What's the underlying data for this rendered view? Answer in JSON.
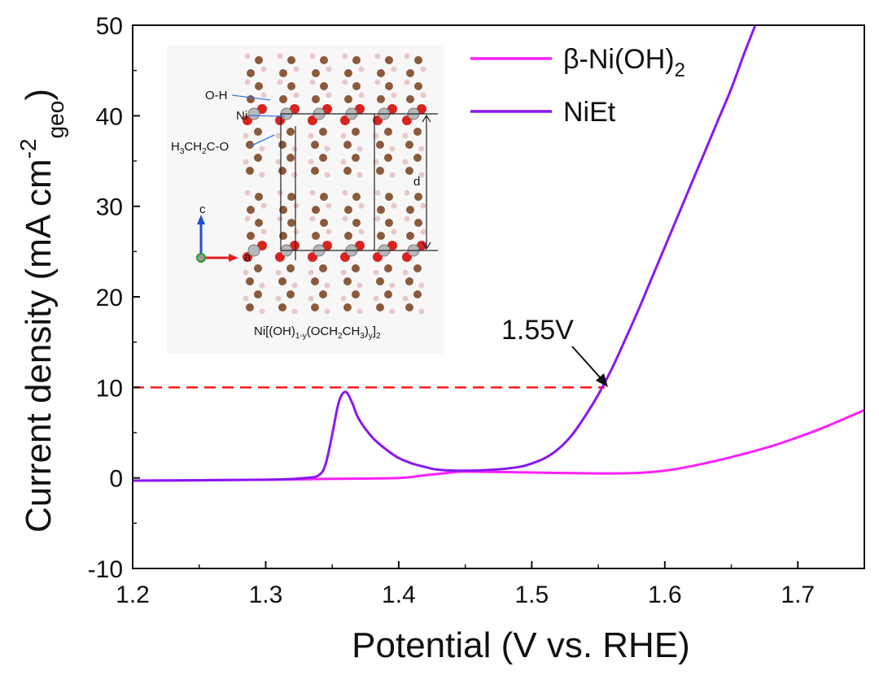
{
  "chart_data": {
    "type": "line",
    "xlabel": "Potential (V vs. RHE)",
    "ylabel_main": "Current density (mA cm",
    "ylabel_sup": "-2",
    "ylabel_sub": "geo",
    "ylabel_close": ")",
    "xlim": [
      1.2,
      1.75
    ],
    "ylim": [
      -10,
      50
    ],
    "x_ticks": [
      1.2,
      1.3,
      1.4,
      1.5,
      1.6,
      1.7
    ],
    "x_tick_labels": [
      "1.2",
      "1.3",
      "1.4",
      "1.5",
      "1.6",
      "1.7"
    ],
    "y_ticks": [
      -10,
      0,
      10,
      20,
      30,
      40,
      50
    ],
    "y_tick_labels": [
      "-10",
      "0",
      "10",
      "20",
      "30",
      "40",
      "50"
    ],
    "series": [
      {
        "name": "β-Ni(OH)2",
        "label_main": "β-Ni(OH)",
        "label_sub": "2",
        "color": "#ff20ff",
        "x": [
          1.2,
          1.3,
          1.35,
          1.4,
          1.42,
          1.44,
          1.45,
          1.5,
          1.55,
          1.58,
          1.6,
          1.62,
          1.65,
          1.68,
          1.7,
          1.72,
          1.75
        ],
        "y": [
          -0.3,
          -0.2,
          -0.1,
          0.0,
          0.3,
          0.6,
          0.7,
          0.6,
          0.5,
          0.55,
          0.8,
          1.3,
          2.3,
          3.5,
          4.5,
          5.6,
          7.5
        ]
      },
      {
        "name": "NiEt",
        "label_main": "NiEt",
        "label_sub": "",
        "color": "#8a17f0",
        "x": [
          1.2,
          1.3,
          1.33,
          1.34,
          1.345,
          1.35,
          1.355,
          1.36,
          1.365,
          1.37,
          1.38,
          1.39,
          1.4,
          1.41,
          1.42,
          1.43,
          1.45,
          1.47,
          1.49,
          1.5,
          1.51,
          1.52,
          1.53,
          1.54,
          1.55,
          1.56,
          1.57,
          1.58,
          1.59,
          1.6,
          1.61,
          1.62,
          1.63,
          1.64,
          1.65,
          1.66,
          1.668
        ],
        "y": [
          -0.3,
          -0.2,
          0.0,
          0.3,
          1.5,
          4.8,
          8.4,
          9.5,
          8.3,
          6.5,
          4.5,
          3.2,
          2.2,
          1.6,
          1.2,
          0.9,
          0.8,
          0.9,
          1.2,
          1.6,
          2.2,
          3.2,
          4.7,
          6.8,
          9.2,
          12.0,
          15.2,
          18.5,
          22.0,
          25.5,
          29.0,
          32.5,
          36.0,
          39.5,
          43.0,
          47.0,
          50.0
        ]
      }
    ],
    "reference_line": {
      "y": 10,
      "x_end": 1.555,
      "color": "#ff1a1a",
      "style": "dashed"
    },
    "annotation": {
      "text": "1.55V",
      "point": [
        1.555,
        10.0
      ]
    },
    "inset": {
      "labels": [
        "O-H",
        "Ni",
        "H3C H2C-O",
        "d"
      ],
      "oh_label": "O-H",
      "ni_label": "Ni",
      "ethoxy_label_parts": [
        "H",
        "3",
        "CH",
        "2",
        "C-O"
      ],
      "d_label": "d",
      "axis_c": "c",
      "axis_a": "a",
      "formula_parts": [
        "Ni[(OH)",
        "1-y",
        "(OCH",
        "2",
        "CH",
        "3",
        ")",
        "y",
        "]",
        "2"
      ]
    }
  }
}
